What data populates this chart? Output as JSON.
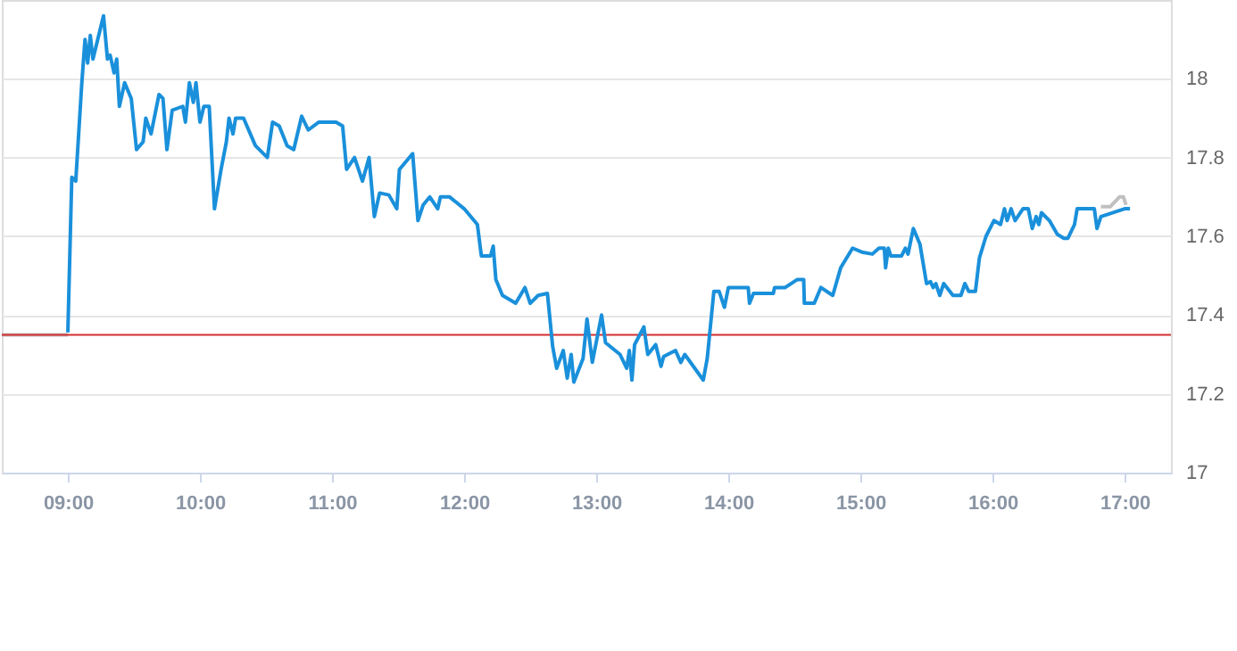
{
  "chart_data": {
    "type": "line",
    "series": [
      {
        "color": "#c0c0c0",
        "x": [
          8.5,
          9.0
        ],
        "values": [
          17.35,
          17.35
        ]
      },
      {
        "color": "#c0c0c0",
        "x": [
          16.82,
          16.89,
          16.96,
          16.99,
          17.01
        ],
        "values": [
          17.675,
          17.675,
          17.7,
          17.7,
          17.68
        ]
      },
      {
        "color": "#1a90db",
        "x": [
          9.0,
          9.03,
          9.06,
          9.105,
          9.13,
          9.15,
          9.17,
          9.19,
          9.27,
          9.3,
          9.32,
          9.35,
          9.37,
          9.39,
          9.43,
          9.48,
          9.52,
          9.57,
          9.59,
          9.63,
          9.69,
          9.72,
          9.75,
          9.79,
          9.87,
          9.89,
          9.92,
          9.95,
          9.97,
          10.0,
          10.03,
          10.07,
          10.11,
          10.16,
          10.2,
          10.22,
          10.25,
          10.27,
          10.33,
          10.42,
          10.51,
          10.55,
          10.6,
          10.66,
          10.71,
          10.77,
          10.82,
          10.9,
          10.99,
          11.03,
          11.08,
          11.11,
          11.17,
          11.23,
          11.28,
          11.32,
          11.36,
          11.43,
          11.49,
          11.51,
          11.61,
          11.65,
          11.69,
          11.74,
          11.8,
          11.82,
          11.89,
          12.0,
          12.1,
          12.13,
          12.2,
          12.22,
          12.24,
          12.29,
          12.39,
          12.46,
          12.5,
          12.56,
          12.63,
          12.67,
          12.7,
          12.75,
          12.78,
          12.81,
          12.83,
          12.9,
          12.93,
          12.97,
          13.04,
          13.07,
          13.18,
          13.23,
          13.25,
          13.27,
          13.29,
          13.36,
          13.39,
          13.45,
          13.49,
          13.51,
          13.6,
          13.64,
          13.67,
          13.81,
          13.84,
          13.89,
          13.93,
          13.97,
          14.0,
          14.15,
          14.16,
          14.19,
          14.34,
          14.35,
          14.43,
          14.52,
          14.57,
          14.575,
          14.65,
          14.7,
          14.79,
          14.85,
          14.94,
          15.01,
          15.09,
          15.14,
          15.18,
          15.19,
          15.21,
          15.23,
          15.31,
          15.34,
          15.36,
          15.4,
          15.45,
          15.5,
          15.53,
          15.55,
          15.57,
          15.6,
          15.63,
          15.7,
          15.76,
          15.79,
          15.82,
          15.87,
          15.9,
          15.95,
          16.01,
          16.06,
          16.09,
          16.11,
          16.14,
          16.17,
          16.23,
          16.27,
          16.3,
          16.33,
          16.35,
          16.37,
          16.43,
          16.49,
          16.54,
          16.57,
          16.62,
          16.64,
          16.74,
          16.77,
          16.79,
          16.82,
          17.0,
          17.04
        ],
        "values": [
          17.356,
          17.75,
          17.74,
          17.985,
          18.1,
          18.04,
          18.11,
          18.05,
          18.16,
          18.05,
          18.06,
          18.015,
          18.05,
          17.93,
          17.99,
          17.95,
          17.82,
          17.84,
          17.9,
          17.86,
          17.96,
          17.95,
          17.82,
          17.92,
          17.93,
          17.89,
          17.99,
          17.94,
          17.99,
          17.89,
          17.93,
          17.93,
          17.67,
          17.77,
          17.84,
          17.9,
          17.86,
          17.9,
          17.9,
          17.83,
          17.8,
          17.89,
          17.88,
          17.83,
          17.82,
          17.905,
          17.87,
          17.89,
          17.89,
          17.89,
          17.88,
          17.77,
          17.8,
          17.74,
          17.8,
          17.65,
          17.71,
          17.705,
          17.67,
          17.77,
          17.81,
          17.64,
          17.68,
          17.7,
          17.67,
          17.7,
          17.7,
          17.67,
          17.63,
          17.55,
          17.55,
          17.575,
          17.49,
          17.45,
          17.43,
          17.47,
          17.43,
          17.45,
          17.455,
          17.32,
          17.265,
          17.31,
          17.24,
          17.3,
          17.23,
          17.29,
          17.39,
          17.28,
          17.4,
          17.33,
          17.3,
          17.265,
          17.31,
          17.235,
          17.325,
          17.37,
          17.3,
          17.325,
          17.27,
          17.295,
          17.31,
          17.28,
          17.3,
          17.235,
          17.29,
          17.46,
          17.46,
          17.42,
          17.47,
          17.47,
          17.43,
          17.455,
          17.455,
          17.47,
          17.47,
          17.49,
          17.49,
          17.43,
          17.43,
          17.47,
          17.45,
          17.52,
          17.57,
          17.56,
          17.555,
          17.57,
          17.57,
          17.52,
          17.57,
          17.55,
          17.55,
          17.57,
          17.555,
          17.62,
          17.58,
          17.48,
          17.485,
          17.47,
          17.48,
          17.45,
          17.48,
          17.45,
          17.45,
          17.48,
          17.46,
          17.46,
          17.545,
          17.6,
          17.64,
          17.63,
          17.67,
          17.64,
          17.67,
          17.64,
          17.67,
          17.67,
          17.62,
          17.65,
          17.63,
          17.66,
          17.64,
          17.605,
          17.595,
          17.595,
          17.63,
          17.67,
          17.67,
          17.67,
          17.62,
          17.65,
          17.67,
          17.67
        ]
      }
    ],
    "ref_lines": [
      {
        "axis": "y",
        "value": 17.35,
        "color": "#d32f2f"
      }
    ],
    "xlim": [
      8.5,
      17.35
    ],
    "xticks": [
      {
        "value": 9,
        "label": "09:00"
      },
      {
        "value": 10,
        "label": "10:00"
      },
      {
        "value": 11,
        "label": "11:00"
      },
      {
        "value": 12,
        "label": "12:00"
      },
      {
        "value": 13,
        "label": "13:00"
      },
      {
        "value": 14,
        "label": "14:00"
      },
      {
        "value": 15,
        "label": "15:00"
      },
      {
        "value": 16,
        "label": "16:00"
      },
      {
        "value": 17,
        "label": "17:00"
      }
    ],
    "ylim": [
      17,
      18.2
    ],
    "yticks": [
      17,
      17.2,
      17.4,
      17.6,
      17.8,
      18
    ],
    "grid": "y"
  }
}
